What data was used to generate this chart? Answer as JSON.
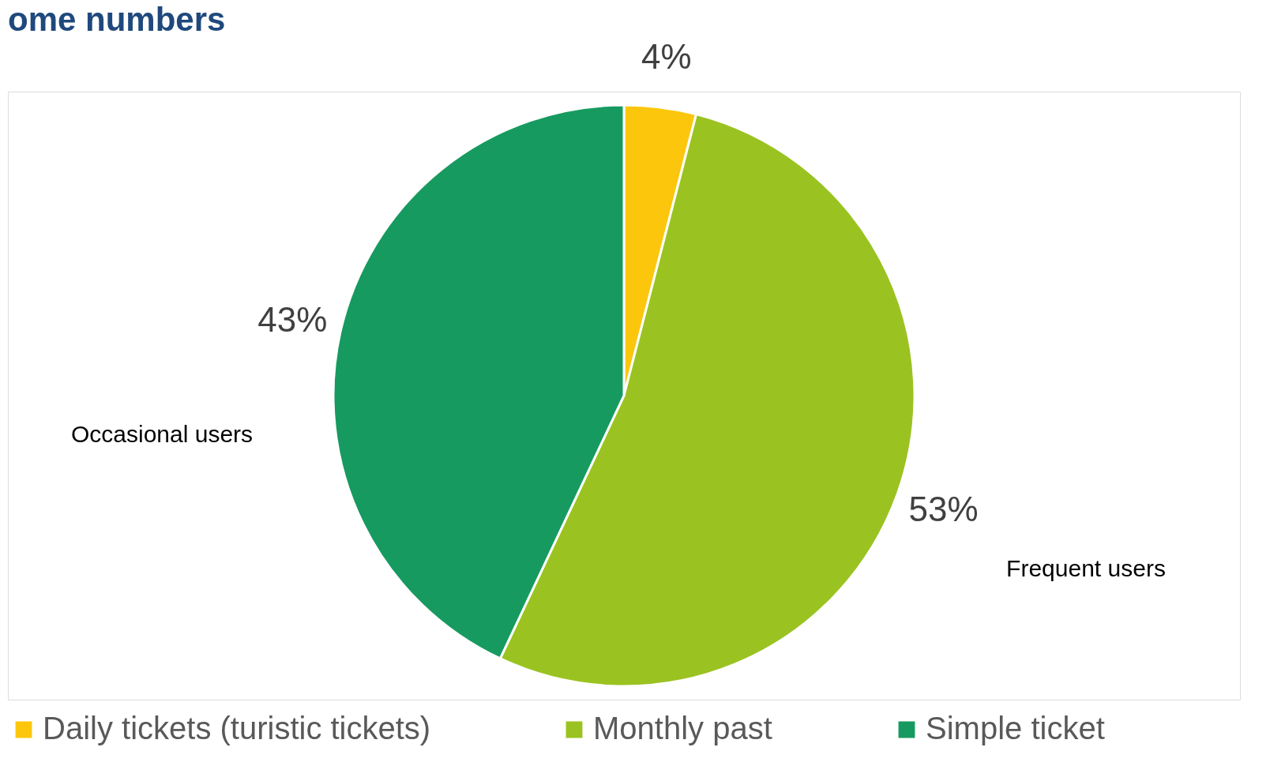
{
  "chart_data": {
    "type": "pie",
    "title": "ome numbers",
    "categories": [
      "Daily  tickets (turistic tickets)",
      "Monthly past",
      "Simple ticket"
    ],
    "values": [
      4,
      53,
      43
    ],
    "colors": [
      "#fcc60c",
      "#9ac321",
      "#179a60"
    ],
    "value_labels": [
      "4%",
      "53%",
      "43%"
    ],
    "annotations": [
      "Occasional users",
      "Frequent users"
    ],
    "legend": "bottom"
  }
}
